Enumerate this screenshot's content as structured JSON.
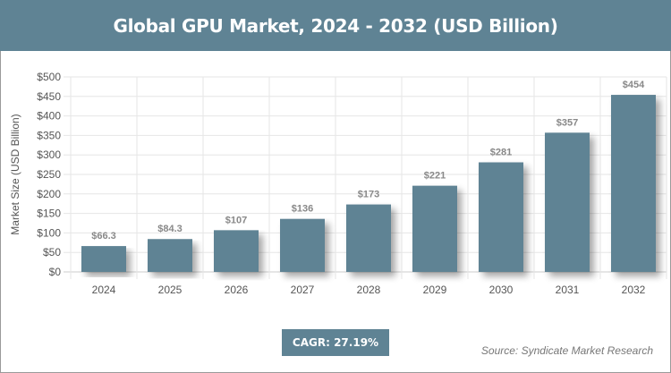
{
  "title": "Global GPU Market, 2024 - 2032 (USD Billion)",
  "cagr": "CAGR: 27.19%",
  "source": "Source: Syndicate Market Research",
  "chart_data": {
    "type": "bar",
    "title": "Global GPU Market, 2024 - 2032 (USD Billion)",
    "xlabel": "",
    "ylabel": "Market Size (USD Billion)",
    "categories": [
      "2024",
      "2025",
      "2026",
      "2027",
      "2028",
      "2029",
      "2030",
      "2031",
      "2032"
    ],
    "values": [
      66.3,
      84.3,
      107,
      136,
      173,
      221,
      281,
      357,
      454
    ],
    "data_labels": [
      "$66.3",
      "$84.3",
      "$107",
      "$136",
      "$173",
      "$221",
      "$281",
      "$357",
      "$454"
    ],
    "ylim": [
      0,
      500
    ],
    "yticks": [
      "$0",
      "$50",
      "$100",
      "$150",
      "$200",
      "$250",
      "$300",
      "$350",
      "$400",
      "$450",
      "$500"
    ],
    "grid": true,
    "bar_color": "#5f8394"
  }
}
